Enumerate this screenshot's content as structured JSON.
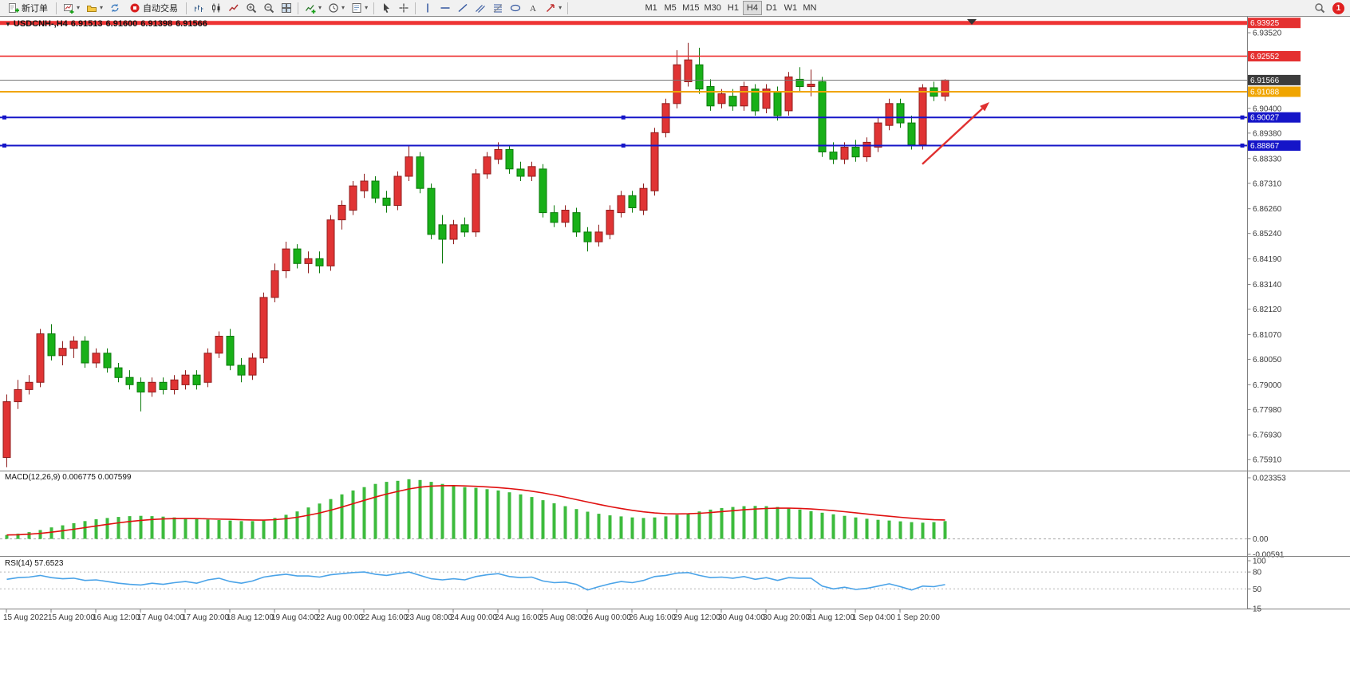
{
  "toolbar": {
    "new_order_label": "新订单",
    "autotrading_label": "自动交易",
    "timeframes": [
      "M1",
      "M5",
      "M15",
      "M30",
      "H1",
      "H4",
      "D1",
      "W1",
      "MN"
    ],
    "active_timeframe": "H4",
    "notification_count": "1"
  },
  "chart_header": {
    "symbol": "USDCNH-,H4",
    "open": "6.91513",
    "high": "6.91600",
    "low": "6.91398",
    "close": "6.91566"
  },
  "indicator_labels": {
    "macd": "MACD(12,26,9) 0.006775 0.007599",
    "rsi": "RSI(14) 57.6523"
  },
  "colors": {
    "bull": "#e03434",
    "bull_edge": "#8f1d1d",
    "bear": "#18b018",
    "bear_edge": "#0b7a0b",
    "macd_hist": "#3dbb3d",
    "macd_signal": "#e01010",
    "rsi_line": "#4aa3e8",
    "axis_text": "#3a3a3a",
    "line_red": "#ee3434",
    "line_blue": "#1515c8",
    "line_orange": "#f0a500",
    "price_line": "#777777",
    "badge_red": "#e43030",
    "badge_dark": "#3c3c3c",
    "badge_blue": "#1515c8",
    "badge_orange": "#f0a500",
    "arrow": "#e03030"
  },
  "chart_data": {
    "type": "candlestick",
    "title": "USDCNH- H4",
    "price_min": 6.7549,
    "price_max": 6.9418,
    "y_ticks": [
      6.9352,
      6.904,
      6.8938,
      6.8833,
      6.8731,
      6.8626,
      6.8524,
      6.8419,
      6.8314,
      6.8212,
      6.8107,
      6.8005,
      6.79,
      6.7798,
      6.7693,
      6.7591
    ],
    "candles": [
      [
        6.76,
        6.786,
        6.756,
        6.783
      ],
      [
        6.783,
        6.792,
        6.78,
        6.788
      ],
      [
        6.788,
        6.794,
        6.786,
        6.791
      ],
      [
        6.791,
        6.813,
        6.789,
        6.811
      ],
      [
        6.811,
        6.815,
        6.8,
        6.802
      ],
      [
        6.802,
        6.808,
        6.798,
        6.805
      ],
      [
        6.805,
        6.81,
        6.801,
        6.808
      ],
      [
        6.808,
        6.81,
        6.797,
        6.799
      ],
      [
        6.799,
        6.805,
        6.797,
        6.803
      ],
      [
        6.803,
        6.805,
        6.795,
        6.797
      ],
      [
        6.797,
        6.799,
        6.791,
        6.793
      ],
      [
        6.793,
        6.796,
        6.788,
        6.79
      ],
      [
        6.791,
        6.793,
        6.779,
        6.787
      ],
      [
        6.787,
        6.793,
        6.785,
        6.791
      ],
      [
        6.791,
        6.793,
        6.786,
        6.788
      ],
      [
        6.788,
        6.794,
        6.786,
        6.792
      ],
      [
        6.79,
        6.796,
        6.788,
        6.794
      ],
      [
        6.794,
        6.796,
        6.788,
        6.79
      ],
      [
        6.791,
        6.805,
        6.789,
        6.803
      ],
      [
        6.803,
        6.812,
        6.801,
        6.81
      ],
      [
        6.81,
        6.813,
        6.796,
        6.798
      ],
      [
        6.798,
        6.801,
        6.791,
        6.794
      ],
      [
        6.794,
        6.803,
        6.792,
        6.801
      ],
      [
        6.801,
        6.828,
        6.799,
        6.826
      ],
      [
        6.826,
        6.84,
        6.824,
        6.837
      ],
      [
        6.837,
        6.849,
        6.834,
        6.846
      ],
      [
        6.846,
        6.848,
        6.838,
        6.84
      ],
      [
        6.84,
        6.845,
        6.836,
        6.842
      ],
      [
        6.842,
        6.845,
        6.836,
        6.839
      ],
      [
        6.839,
        6.86,
        6.837,
        6.858
      ],
      [
        6.858,
        6.866,
        6.854,
        6.864
      ],
      [
        6.862,
        6.874,
        6.86,
        6.872
      ],
      [
        6.87,
        6.877,
        6.867,
        6.874
      ],
      [
        6.874,
        6.876,
        6.865,
        6.867
      ],
      [
        6.867,
        6.87,
        6.861,
        6.864
      ],
      [
        6.864,
        6.878,
        6.862,
        6.876
      ],
      [
        6.876,
        6.889,
        6.874,
        6.884
      ],
      [
        6.884,
        6.886,
        6.869,
        6.871
      ],
      [
        6.871,
        6.873,
        6.85,
        6.852
      ],
      [
        6.856,
        6.86,
        6.84,
        6.85
      ],
      [
        6.85,
        6.858,
        6.848,
        6.856
      ],
      [
        6.856,
        6.859,
        6.851,
        6.853
      ],
      [
        6.853,
        6.879,
        6.851,
        6.877
      ],
      [
        6.877,
        6.886,
        6.875,
        6.884
      ],
      [
        6.883,
        6.89,
        6.881,
        6.887
      ],
      [
        6.887,
        6.889,
        6.877,
        6.879
      ],
      [
        6.879,
        6.882,
        6.874,
        6.876
      ],
      [
        6.876,
        6.882,
        6.874,
        6.88
      ],
      [
        6.879,
        6.881,
        6.859,
        6.861
      ],
      [
        6.861,
        6.864,
        6.855,
        6.857
      ],
      [
        6.857,
        6.864,
        6.855,
        6.862
      ],
      [
        6.861,
        6.863,
        6.851,
        6.853
      ],
      [
        6.853,
        6.855,
        6.845,
        6.849
      ],
      [
        6.849,
        6.856,
        6.847,
        6.853
      ],
      [
        6.852,
        6.864,
        6.85,
        6.862
      ],
      [
        6.861,
        6.87,
        6.859,
        6.868
      ],
      [
        6.868,
        6.87,
        6.861,
        6.863
      ],
      [
        6.862,
        6.873,
        6.86,
        6.871
      ],
      [
        6.87,
        6.896,
        6.868,
        6.894
      ],
      [
        6.894,
        6.908,
        6.892,
        6.906
      ],
      [
        6.906,
        6.928,
        6.904,
        6.922
      ],
      [
        6.915,
        6.931,
        6.913,
        6.924
      ],
      [
        6.922,
        6.929,
        6.91,
        6.912
      ],
      [
        6.913,
        6.916,
        6.903,
        6.905
      ],
      [
        6.906,
        6.912,
        6.904,
        6.91
      ],
      [
        6.909,
        6.912,
        6.903,
        6.905
      ],
      [
        6.905,
        6.915,
        6.903,
        6.913
      ],
      [
        6.912,
        6.914,
        6.901,
        6.903
      ],
      [
        6.904,
        6.914,
        6.902,
        6.912
      ],
      [
        6.911,
        6.913,
        6.899,
        6.901
      ],
      [
        6.903,
        6.919,
        6.901,
        6.917
      ],
      [
        6.916,
        6.921,
        6.911,
        6.913
      ],
      [
        6.913,
        6.92,
        6.909,
        6.914
      ],
      [
        6.915,
        6.917,
        6.884,
        6.886
      ],
      [
        6.886,
        6.89,
        6.881,
        6.883
      ],
      [
        6.883,
        6.89,
        6.881,
        6.888
      ],
      [
        6.888,
        6.891,
        6.882,
        6.884
      ],
      [
        6.884,
        6.892,
        6.882,
        6.89
      ],
      [
        6.888,
        6.9,
        6.886,
        6.898
      ],
      [
        6.897,
        6.908,
        6.895,
        6.906
      ],
      [
        6.906,
        6.908,
        6.896,
        6.898
      ],
      [
        6.898,
        6.901,
        6.887,
        6.889
      ],
      [
        6.889,
        6.914,
        6.887,
        6.9125
      ],
      [
        6.9125,
        6.915,
        6.907,
        6.909
      ],
      [
        6.909,
        6.916,
        6.907,
        6.91566
      ]
    ],
    "x_labels": [
      {
        "i": 0,
        "t": "15 Aug 2022"
      },
      {
        "i": 4,
        "t": "15 Aug 20:00"
      },
      {
        "i": 8,
        "t": "16 Aug 12:00"
      },
      {
        "i": 12,
        "t": "17 Aug 04:00"
      },
      {
        "i": 16,
        "t": "17 Aug 20:00"
      },
      {
        "i": 20,
        "t": "18 Aug 12:00"
      },
      {
        "i": 24,
        "t": "19 Aug 04:00"
      },
      {
        "i": 28,
        "t": "22 Aug 00:00"
      },
      {
        "i": 32,
        "t": "22 Aug 16:00"
      },
      {
        "i": 36,
        "t": "23 Aug 08:00"
      },
      {
        "i": 40,
        "t": "24 Aug 00:00"
      },
      {
        "i": 44,
        "t": "24 Aug 16:00"
      },
      {
        "i": 48,
        "t": "25 Aug 08:00"
      },
      {
        "i": 52,
        "t": "26 Aug 00:00"
      },
      {
        "i": 56,
        "t": "26 Aug 16:00"
      },
      {
        "i": 60,
        "t": "29 Aug 12:00"
      },
      {
        "i": 64,
        "t": "30 Aug 04:00"
      },
      {
        "i": 68,
        "t": "30 Aug 20:00"
      },
      {
        "i": 72,
        "t": "31 Aug 12:00"
      },
      {
        "i": 76,
        "t": "1 Sep 04:00"
      },
      {
        "i": 80,
        "t": "1 Sep 20:00"
      }
    ],
    "hlines": [
      {
        "price": 6.93925,
        "label": "6.93925",
        "type": "resistance",
        "style": "red-thick"
      },
      {
        "price": 6.92552,
        "label": "6.92552",
        "type": "resistance",
        "style": "red"
      },
      {
        "price": 6.91566,
        "label": "6.91566",
        "type": "current-price",
        "style": "gray"
      },
      {
        "price": 6.91088,
        "label": "6.91088",
        "type": "level",
        "style": "orange"
      },
      {
        "price": 6.90027,
        "label": "6.90027",
        "type": "support",
        "style": "blue"
      },
      {
        "price": 6.88867,
        "label": "6.88867",
        "type": "support",
        "style": "blue"
      }
    ],
    "arrow": {
      "from": {
        "i": 82,
        "price": 6.881
      },
      "to": {
        "i": 88,
        "price": 6.9066
      }
    },
    "macd": {
      "params": "12,26,9",
      "main": "0.006775",
      "signal": "0.007599",
      "max": 0.023353,
      "min": -0.00591,
      "y_ticks": [
        {
          "v": 0.023353,
          "t": "0.023353"
        },
        {
          "v": 0,
          "t": "0.00"
        },
        {
          "v": -0.00591,
          "t": "-0.00591"
        }
      ],
      "values": [
        0.0015,
        0.002,
        0.0026,
        0.0034,
        0.0044,
        0.0052,
        0.006,
        0.0068,
        0.0075,
        0.008,
        0.0084,
        0.0087,
        0.0088,
        0.0087,
        0.0085,
        0.0082,
        0.0079,
        0.0076,
        0.0074,
        0.0072,
        0.007,
        0.0068,
        0.0068,
        0.007,
        0.008,
        0.0092,
        0.0105,
        0.012,
        0.0135,
        0.0152,
        0.017,
        0.0185,
        0.0198,
        0.021,
        0.0218,
        0.0222,
        0.0228,
        0.0225,
        0.0218,
        0.021,
        0.0205,
        0.0198,
        0.0195,
        0.019,
        0.0185,
        0.0178,
        0.017,
        0.016,
        0.0148,
        0.0136,
        0.0125,
        0.0114,
        0.0104,
        0.0096,
        0.009,
        0.0086,
        0.0082,
        0.008,
        0.0082,
        0.0086,
        0.0092,
        0.0098,
        0.0105,
        0.0112,
        0.0118,
        0.0122,
        0.0125,
        0.0126,
        0.0125,
        0.0122,
        0.0118,
        0.0112,
        0.0106,
        0.01,
        0.0094,
        0.0088,
        0.0082,
        0.0077,
        0.0073,
        0.007,
        0.0067,
        0.0064,
        0.0062,
        0.0064,
        0.0068
      ]
    },
    "rsi": {
      "period": "14",
      "value": "57.6523",
      "max": 100,
      "min": 15,
      "levels": [
        80,
        50
      ],
      "y_ticks": [
        {
          "v": 100,
          "t": "100"
        },
        {
          "v": 80,
          "t": "80"
        },
        {
          "v": 50,
          "t": "50"
        },
        {
          "v": 15,
          "t": "15"
        }
      ],
      "values": [
        67,
        70,
        71,
        74,
        70,
        68,
        69,
        65,
        66,
        63,
        60,
        58,
        57,
        60,
        58,
        61,
        63,
        60,
        66,
        69,
        63,
        60,
        64,
        71,
        74,
        76,
        73,
        73,
        71,
        75,
        77,
        79,
        80,
        76,
        74,
        77,
        80,
        74,
        68,
        66,
        68,
        66,
        72,
        75,
        77,
        72,
        70,
        71,
        64,
        61,
        62,
        58,
        48,
        54,
        59,
        63,
        61,
        65,
        72,
        74,
        78,
        79,
        74,
        70,
        71,
        69,
        72,
        67,
        70,
        65,
        70,
        69,
        69,
        55,
        50,
        53,
        49,
        51,
        55,
        59,
        54,
        48,
        55,
        54,
        57.65
      ]
    }
  }
}
